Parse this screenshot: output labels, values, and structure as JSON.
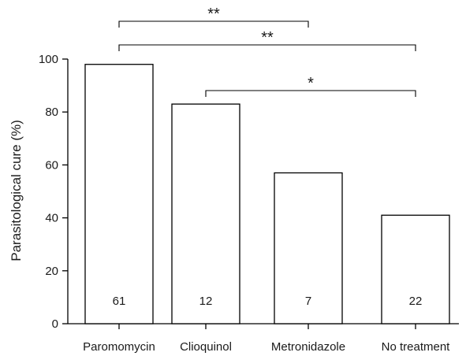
{
  "chart_data": {
    "type": "bar",
    "title": "",
    "xlabel": "",
    "ylabel": "Parasitological cure (%)",
    "ylim": [
      0,
      100
    ],
    "yticks": [
      0,
      20,
      40,
      60,
      80,
      100
    ],
    "categories": [
      "Paromomycin",
      "Clioquinol",
      "Metronidazole",
      "No treatment"
    ],
    "values": [
      98,
      83,
      57,
      41
    ],
    "sample_sizes": [
      "61",
      "12",
      "7",
      "22"
    ],
    "bar_color": "#ffffff",
    "bar_edge_color": "#000000",
    "grid": false,
    "significance": [
      {
        "from": "Paromomycin",
        "to": "Metronidazole",
        "label": "**"
      },
      {
        "from": "Paromomycin",
        "to": "No treatment",
        "label": "**"
      },
      {
        "from": "Clioquinol",
        "to": "No treatment",
        "label": "*"
      }
    ]
  }
}
